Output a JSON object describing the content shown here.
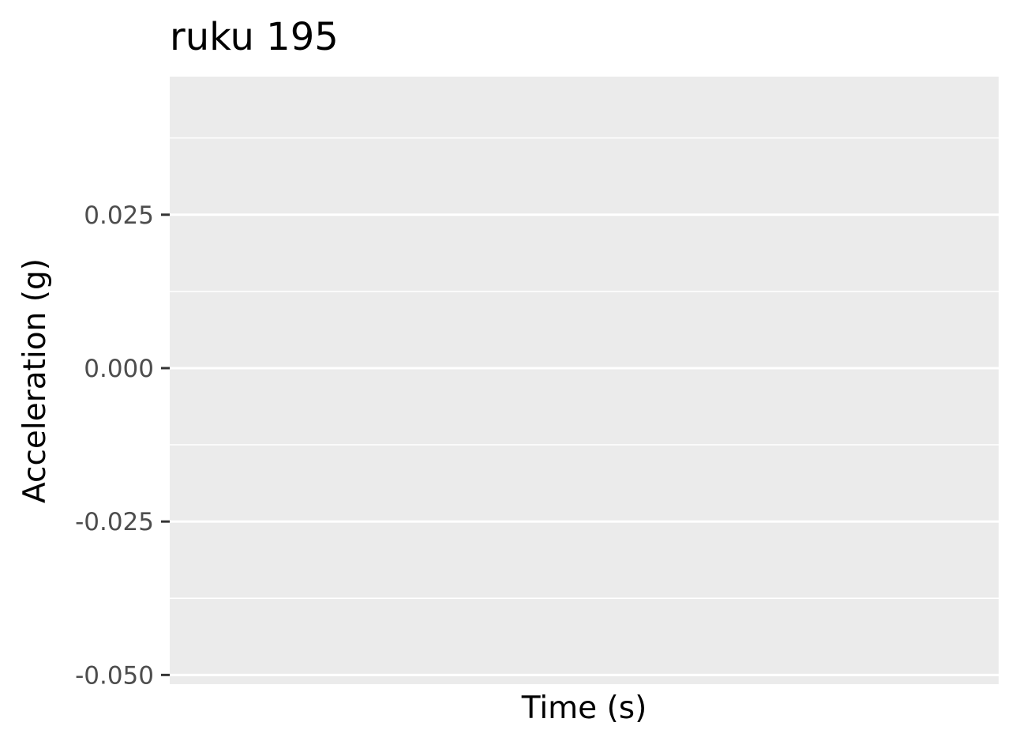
{
  "chart_data": {
    "type": "line",
    "title": "ruku 195",
    "xlabel": "Time (s)",
    "ylabel": "Acceleration (g)",
    "ylim": [
      -0.0515,
      0.0475
    ],
    "y_ticks": [
      {
        "value": -0.05,
        "label": "-0.050"
      },
      {
        "value": -0.025,
        "label": "-0.025"
      },
      {
        "value": 0.0,
        "label": "0.000"
      },
      {
        "value": 0.025,
        "label": "0.025"
      }
    ],
    "y_minor_ticks": [
      -0.0375,
      -0.0125,
      0.0125,
      0.0375
    ],
    "x_ticks": [],
    "series": [],
    "grid": true,
    "legend": "none",
    "colors": {
      "panel_background": "#ebebeb",
      "grid_line": "#ffffff",
      "tick_mark": "#333333",
      "tick_label": "#4d4d4d",
      "text": "#000000"
    }
  }
}
